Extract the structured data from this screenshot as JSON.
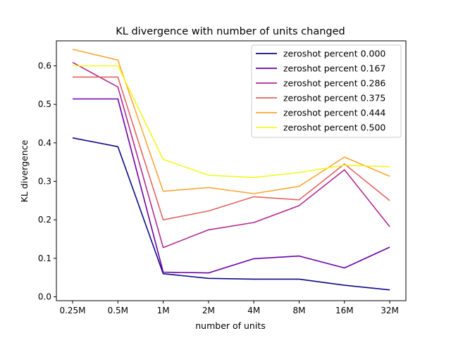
{
  "chart_data": {
    "type": "line",
    "title": "KL divergence with number of units changed",
    "xlabel": "number of units",
    "ylabel": "KL divergence",
    "categories": [
      "0.25M",
      "0.5M",
      "1M",
      "2M",
      "4M",
      "8M",
      "16M",
      "32M"
    ],
    "ylim": [
      -0.01,
      0.665
    ],
    "yticks": [
      0.0,
      0.1,
      0.2,
      0.3,
      0.4,
      0.5,
      0.6
    ],
    "ytick_labels": [
      "0.0",
      "0.1",
      "0.2",
      "0.3",
      "0.4",
      "0.5",
      "0.6"
    ],
    "grid": false,
    "legend_position": "top-right",
    "series": [
      {
        "name": "zeroshot percent 0.000",
        "color": "#0d0887",
        "values": [
          0.413,
          0.39,
          0.06,
          0.048,
          0.046,
          0.046,
          0.03,
          0.018
        ]
      },
      {
        "name": "zeroshot percent 0.167",
        "color": "#6a00a8",
        "values": [
          0.514,
          0.514,
          0.064,
          0.062,
          0.099,
          0.106,
          0.075,
          0.129
        ]
      },
      {
        "name": "zeroshot percent 0.286",
        "color": "#b12a90",
        "values": [
          0.609,
          0.545,
          0.128,
          0.174,
          0.193,
          0.237,
          0.33,
          0.182
        ]
      },
      {
        "name": "zeroshot percent 0.375",
        "color": "#e16462",
        "values": [
          0.571,
          0.571,
          0.2,
          0.223,
          0.26,
          0.252,
          0.345,
          0.25
        ]
      },
      {
        "name": "zeroshot percent 0.444",
        "color": "#fca636",
        "values": [
          0.643,
          0.615,
          0.274,
          0.284,
          0.268,
          0.287,
          0.363,
          0.313
        ]
      },
      {
        "name": "zeroshot percent 0.500",
        "color": "#f0f921",
        "values": [
          0.6,
          0.6,
          0.357,
          0.316,
          0.31,
          0.323,
          0.342,
          0.338
        ]
      }
    ]
  }
}
